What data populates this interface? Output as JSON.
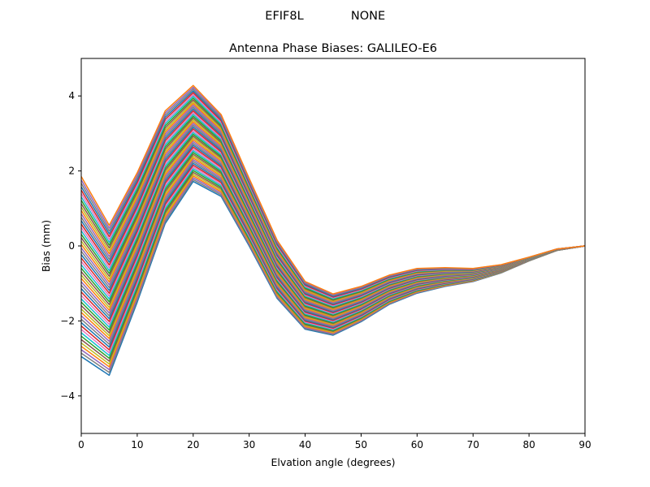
{
  "figure": {
    "suptitle_left": "EFIF8L",
    "suptitle_right": "NONE"
  },
  "chart_data": {
    "type": "line",
    "title": "Antenna Phase Biases: GALILEO-E6",
    "xlabel": "Elvation angle (degrees)",
    "ylabel": "Bias (mm)",
    "xlim": [
      0,
      90
    ],
    "ylim": [
      -5,
      5
    ],
    "xticks": [
      0,
      10,
      20,
      30,
      40,
      50,
      60,
      70,
      80,
      90
    ],
    "yticks": [
      -4,
      -2,
      0,
      2,
      4
    ],
    "grid": false,
    "legend": "none",
    "x": [
      0,
      5,
      10,
      15,
      20,
      25,
      30,
      35,
      40,
      45,
      50,
      55,
      60,
      65,
      70,
      75,
      80,
      85,
      90
    ],
    "envelope": {
      "upper": [
        1.85,
        0.55,
        1.95,
        3.6,
        4.28,
        3.5,
        1.8,
        0.15,
        -0.95,
        -1.28,
        -1.08,
        -0.78,
        -0.6,
        -0.58,
        -0.6,
        -0.5,
        -0.3,
        -0.08,
        0.0
      ],
      "lower": [
        -2.95,
        -3.45,
        -1.5,
        0.6,
        1.72,
        1.32,
        0.0,
        -1.4,
        -2.22,
        -2.38,
        -2.02,
        -1.56,
        -1.26,
        -1.08,
        -0.95,
        -0.72,
        -0.4,
        -0.12,
        0.0
      ]
    },
    "series_count": 54,
    "palette": [
      "#1f77b4",
      "#ff7f0e",
      "#2ca02c",
      "#d62728",
      "#9467bd",
      "#8c564b",
      "#e377c2",
      "#7f7f7f",
      "#bcbd22",
      "#17becf"
    ]
  }
}
